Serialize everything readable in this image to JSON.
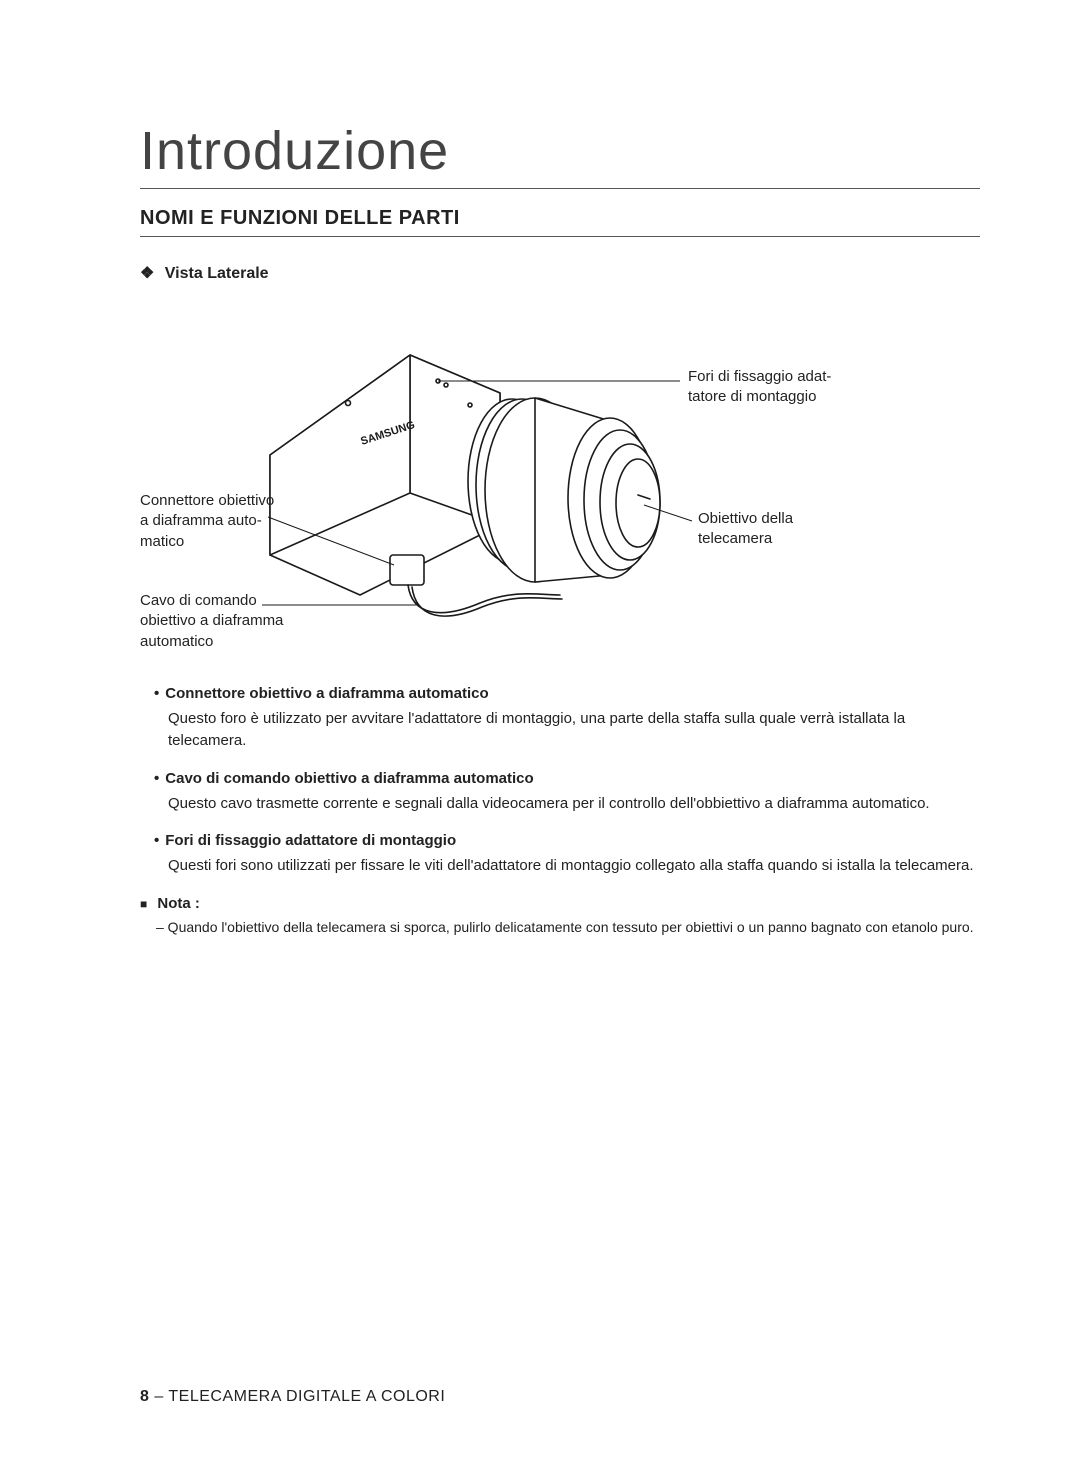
{
  "chapter_title": "Introduzione",
  "section_title": "NOMI E FUNZIONI DELLE PARTI",
  "subheading": {
    "ornament": "❖",
    "text": "Vista Laterale"
  },
  "diagram": {
    "brand_text": "SAMSUNG",
    "labels": {
      "top_right": "Fori di fissaggio adat-\ntatore di montaggio",
      "mid_right": "Obiettivo della\ntelecamera",
      "mid_left": "Connettore obiettivo\na diaframma auto-\nmatico",
      "bottom_left": "Cavo di comando\nobiettivo a diaframma\nautomatico"
    },
    "colors": {
      "stroke": "#1a1a1a",
      "fill": "#ffffff",
      "leader": "#1a1a1a"
    }
  },
  "descriptions": [
    {
      "title": "Connettore obiettivo a diaframma automatico",
      "body": "Questo foro è utilizzato per avvitare l'adattatore di montaggio, una parte della staffa sulla quale verrà istallata la telecamera."
    },
    {
      "title": "Cavo di comando obiettivo a diaframma automatico",
      "body": "Questo cavo trasmette corrente e segnali dalla videocamera per il controllo dell'obbiettivo a diaframma automatico."
    },
    {
      "title": "Fori di fissaggio adattatore di montaggio",
      "body": "Questi fori sono utilizzati per fissare le viti dell'adattatore di montaggio collegato alla staffa quando si istalla la telecamera."
    }
  ],
  "note": {
    "marker": "■",
    "label": "Nota",
    "colon": " :",
    "body": "– Quando l'obiettivo della telecamera si sporca, pulirlo delicatamente con tessuto per obiettivi o un panno bagnato con etanolo puro."
  },
  "footer": {
    "page_number": "8",
    "sep": " – ",
    "title": "TELECAMERA DIGITALE A COLORI"
  }
}
